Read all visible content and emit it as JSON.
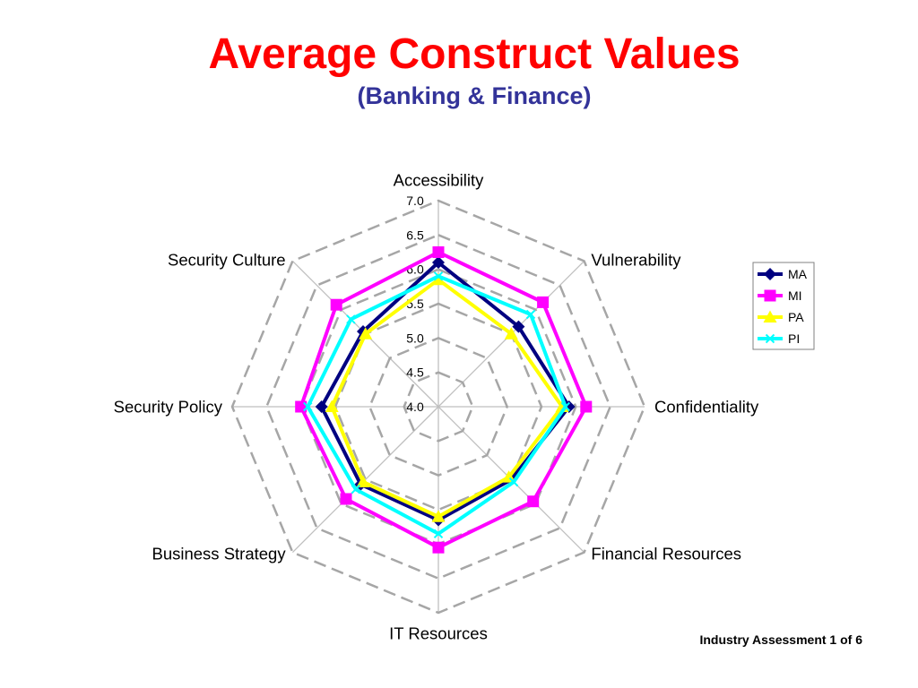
{
  "chart_data": {
    "type": "radar",
    "title": "Average Construct Values",
    "subtitle": "(Banking & Finance)",
    "categories": [
      "Accessibility",
      "Vulnerability",
      "Confidentiality",
      "Financial Resources",
      "IT Resources",
      "Business Strategy",
      "Security Policy",
      "Security Culture"
    ],
    "rlim": [
      4.0,
      7.0
    ],
    "tick_labels": [
      "4.0",
      "4.5",
      "5.0",
      "5.5",
      "6.0",
      "6.5",
      "7.0"
    ],
    "grid": true,
    "legend_position": "right",
    "series": [
      {
        "name": "MA",
        "color": "#000080",
        "marker": "diamond",
        "values": [
          6.1,
          5.65,
          5.9,
          5.5,
          5.65,
          5.6,
          5.7,
          5.55
        ]
      },
      {
        "name": "MI",
        "color": "#FF00FF",
        "marker": "square",
        "values": [
          6.25,
          6.15,
          6.15,
          5.95,
          6.05,
          5.9,
          6.0,
          6.1
        ]
      },
      {
        "name": "PA",
        "color": "#FFFF00",
        "marker": "triangle",
        "values": [
          5.85,
          5.5,
          5.8,
          5.45,
          5.6,
          5.55,
          5.55,
          5.5
        ]
      },
      {
        "name": "PI",
        "color": "#00FFFF",
        "marker": "x",
        "values": [
          5.9,
          5.9,
          5.85,
          5.55,
          5.85,
          5.7,
          5.9,
          5.8
        ]
      }
    ]
  },
  "colors": {
    "title": "#FF0000",
    "subtitle": "#333399"
  },
  "footer": {
    "text": "Industry Assessment 1 of 6"
  }
}
